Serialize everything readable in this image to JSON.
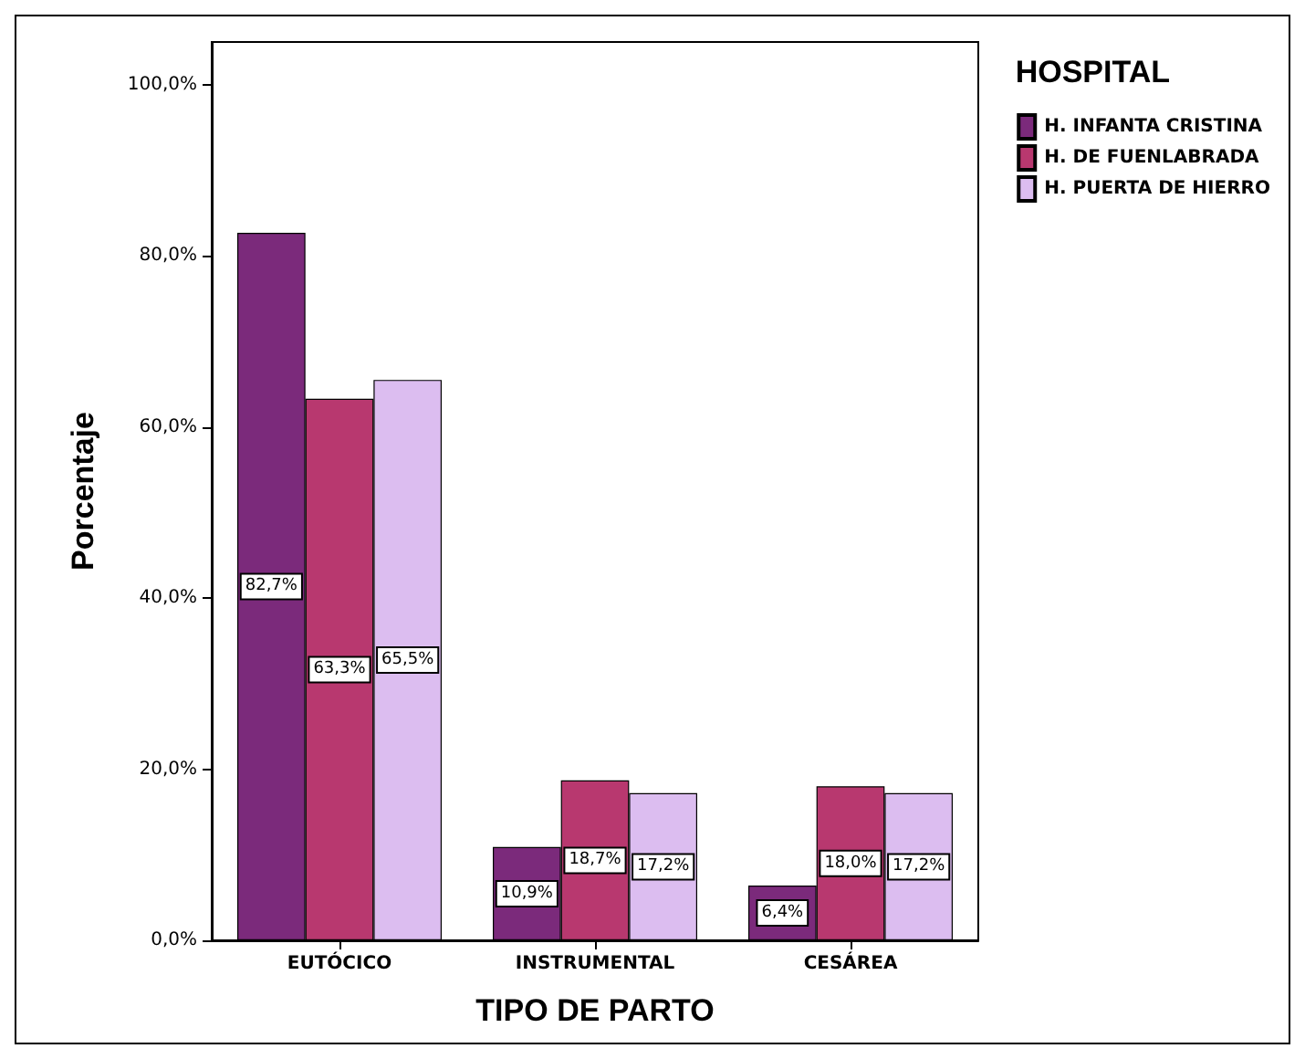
{
  "chart_data": {
    "type": "bar",
    "xlabel": "TIPO DE PARTO",
    "ylabel": "Porcentaje",
    "legend_title": "HOSPITAL",
    "legend": "top right",
    "grid": false,
    "categories": [
      "EUTÓCICO",
      "INSTRUMENTAL",
      "CESÁREA"
    ],
    "series": [
      {
        "name": "H. INFANTA CRISTINA",
        "color": "#7b2a7b",
        "values": [
          82.7,
          10.9,
          6.4
        ],
        "value_labels": [
          "82,7%",
          "10,9%",
          "6,4%"
        ]
      },
      {
        "name": "H. DE FUENLABRADA",
        "color": "#b8386f",
        "values": [
          63.3,
          18.7,
          18.0
        ],
        "value_labels": [
          "63,3%",
          "18,7%",
          "18,0%"
        ]
      },
      {
        "name": "H. PUERTA DE HIERRO",
        "color": "#dcbdf0",
        "values": [
          65.5,
          17.2,
          17.2
        ],
        "value_labels": [
          "65,5%",
          "17,2%",
          "17,2%"
        ]
      }
    ],
    "ylim": [
      0,
      105
    ],
    "yticks": [
      {
        "value": 0,
        "label": "0,0%"
      },
      {
        "value": 20,
        "label": "20,0%"
      },
      {
        "value": 40,
        "label": "40,0%"
      },
      {
        "value": 60,
        "label": "60,0%"
      },
      {
        "value": 80,
        "label": "80,0%"
      },
      {
        "value": 100,
        "label": "100,0%"
      }
    ]
  }
}
